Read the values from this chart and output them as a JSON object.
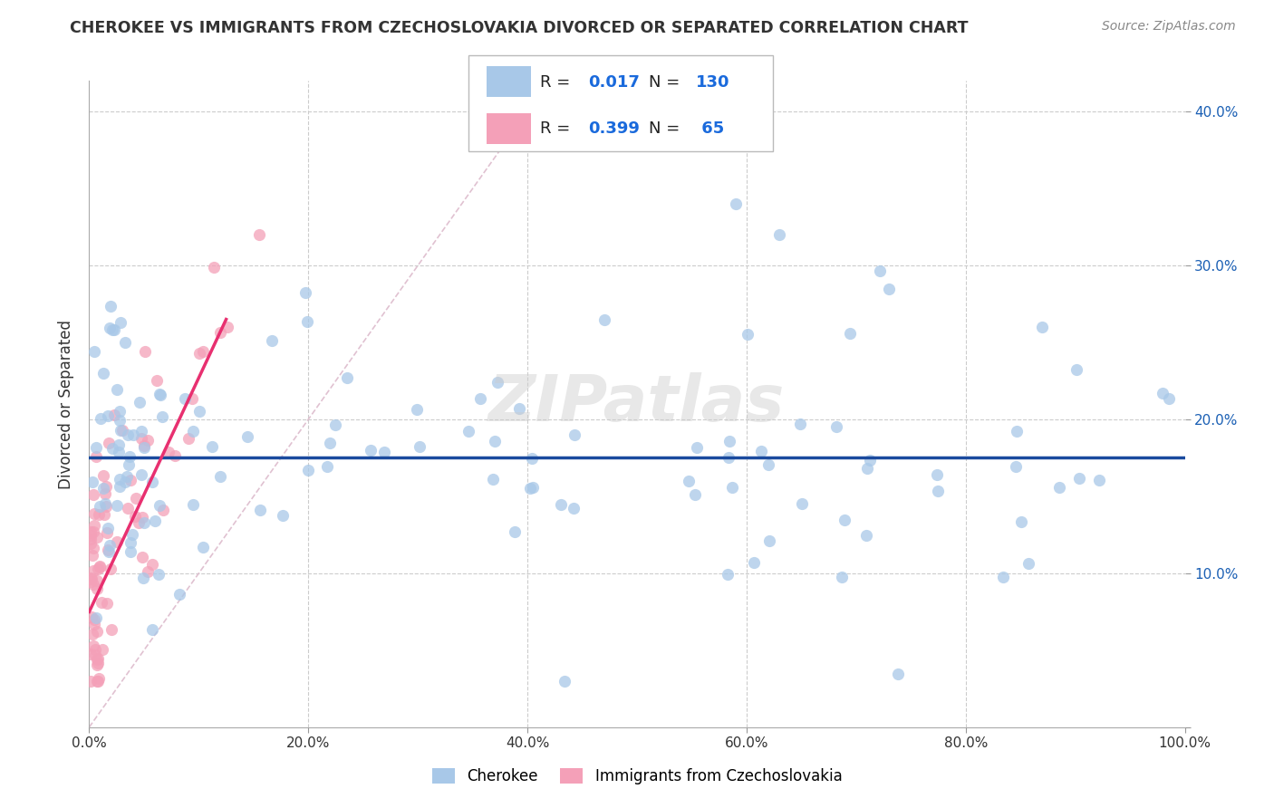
{
  "title": "CHEROKEE VS IMMIGRANTS FROM CZECHOSLOVAKIA DIVORCED OR SEPARATED CORRELATION CHART",
  "source": "Source: ZipAtlas.com",
  "ylabel": "Divorced or Separated",
  "xlim": [
    0.0,
    1.0
  ],
  "ylim": [
    0.0,
    0.42
  ],
  "xticks": [
    0.0,
    0.2,
    0.4,
    0.6,
    0.8,
    1.0
  ],
  "xtick_labels": [
    "0.0%",
    "20.0%",
    "40.0%",
    "60.0%",
    "80.0%",
    "100.0%"
  ],
  "yticks": [
    0.0,
    0.1,
    0.2,
    0.3,
    0.4
  ],
  "ytick_labels": [
    "",
    "10.0%",
    "20.0%",
    "30.0%",
    "40.0%"
  ],
  "blue_color": "#a8c8e8",
  "pink_color": "#f4a0b8",
  "blue_line_color": "#1a4a9e",
  "pink_line_color": "#e83070",
  "diag_line_color": "#ddbbcc",
  "grid_color": "#cccccc",
  "legend_blue_label": "Cherokee",
  "legend_pink_label": "Immigrants from Czechoslovakia",
  "blue_R": "0.017",
  "blue_N": "130",
  "pink_R": "0.399",
  "pink_N": "65",
  "watermark": "ZIPatlas",
  "blue_line_y": 0.175,
  "pink_line_x0": 0.0,
  "pink_line_y0": 0.075,
  "pink_line_x1": 0.125,
  "pink_line_y1": 0.265,
  "diag_line_x0": 0.0,
  "diag_line_y0": 0.0,
  "diag_line_x1": 0.42,
  "diag_line_y1": 0.42
}
